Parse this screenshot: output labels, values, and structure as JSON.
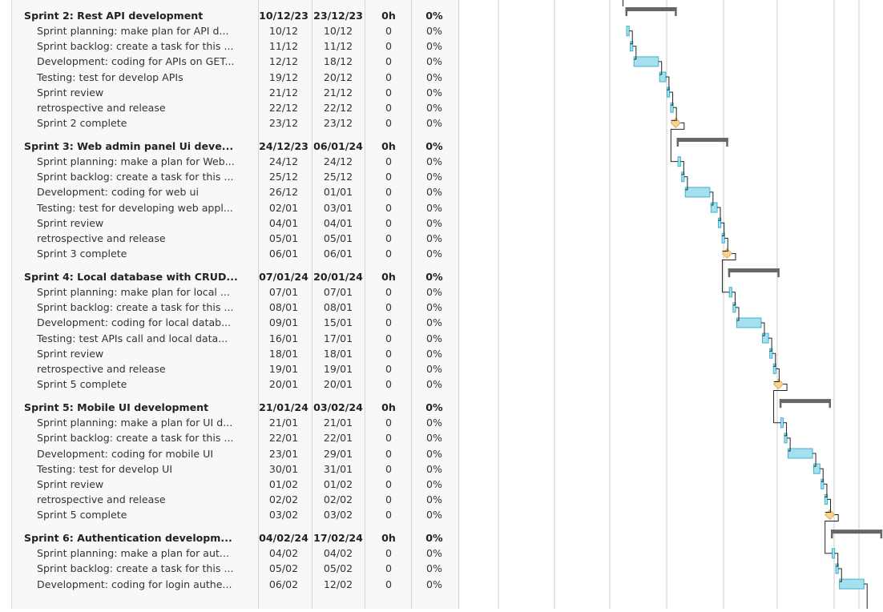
{
  "groups": [
    {
      "name": "Sprint 2: Rest API development",
      "start": "10/12/23",
      "end": "23/12/23",
      "hours": "0h",
      "pct": "0%",
      "tasks": [
        {
          "name": "Sprint planning: make plan for API d...",
          "start": "10/12",
          "end": "10/12",
          "hours": "0",
          "pct": "0%",
          "type": "task"
        },
        {
          "name": "Sprint backlog: create a task for this ...",
          "start": "11/12",
          "end": "11/12",
          "hours": "0",
          "pct": "0%",
          "type": "task"
        },
        {
          "name": "Development: coding for APIs on GET...",
          "start": "12/12",
          "end": "18/12",
          "hours": "0",
          "pct": "0%",
          "type": "task"
        },
        {
          "name": "Testing: test for develop APIs",
          "start": "19/12",
          "end": "20/12",
          "hours": "0",
          "pct": "0%",
          "type": "task"
        },
        {
          "name": "Sprint review",
          "start": "21/12",
          "end": "21/12",
          "hours": "0",
          "pct": "0%",
          "type": "task"
        },
        {
          "name": "retrospective and release",
          "start": "22/12",
          "end": "22/12",
          "hours": "0",
          "pct": "0%",
          "type": "task"
        },
        {
          "name": "Sprint 2 complete",
          "start": "23/12",
          "end": "23/12",
          "hours": "0",
          "pct": "0%",
          "type": "milestone"
        }
      ]
    },
    {
      "name": "Sprint 3: Web admin panel Ui deve...",
      "start": "24/12/23",
      "end": "06/01/24",
      "hours": "0h",
      "pct": "0%",
      "tasks": [
        {
          "name": "Sprint planning: make a plan for Web...",
          "start": "24/12",
          "end": "24/12",
          "hours": "0",
          "pct": "0%",
          "type": "task"
        },
        {
          "name": "Sprint backlog: create a task for this ...",
          "start": "25/12",
          "end": "25/12",
          "hours": "0",
          "pct": "0%",
          "type": "task"
        },
        {
          "name": "Development: coding for web ui",
          "start": "26/12",
          "end": "01/01",
          "hours": "0",
          "pct": "0%",
          "type": "task"
        },
        {
          "name": "Testing: test for developing web appl...",
          "start": "02/01",
          "end": "03/01",
          "hours": "0",
          "pct": "0%",
          "type": "task"
        },
        {
          "name": "Sprint review",
          "start": "04/01",
          "end": "04/01",
          "hours": "0",
          "pct": "0%",
          "type": "task"
        },
        {
          "name": "retrospective and release",
          "start": "05/01",
          "end": "05/01",
          "hours": "0",
          "pct": "0%",
          "type": "task"
        },
        {
          "name": "Sprint 3 complete",
          "start": "06/01",
          "end": "06/01",
          "hours": "0",
          "pct": "0%",
          "type": "milestone"
        }
      ]
    },
    {
      "name": "Sprint 4: Local database with CRUD...",
      "start": "07/01/24",
      "end": "20/01/24",
      "hours": "0h",
      "pct": "0%",
      "tasks": [
        {
          "name": "Sprint planning: make plan for local ...",
          "start": "07/01",
          "end": "07/01",
          "hours": "0",
          "pct": "0%",
          "type": "task"
        },
        {
          "name": "Sprint backlog: create a task for this ...",
          "start": "08/01",
          "end": "08/01",
          "hours": "0",
          "pct": "0%",
          "type": "task"
        },
        {
          "name": "Development: coding for local datab...",
          "start": "09/01",
          "end": "15/01",
          "hours": "0",
          "pct": "0%",
          "type": "task"
        },
        {
          "name": "Testing: test APIs call and local data...",
          "start": "16/01",
          "end": "17/01",
          "hours": "0",
          "pct": "0%",
          "type": "task"
        },
        {
          "name": "Sprint review",
          "start": "18/01",
          "end": "18/01",
          "hours": "0",
          "pct": "0%",
          "type": "task"
        },
        {
          "name": "retrospective and release",
          "start": "19/01",
          "end": "19/01",
          "hours": "0",
          "pct": "0%",
          "type": "task"
        },
        {
          "name": "Sprint 5 complete",
          "start": "20/01",
          "end": "20/01",
          "hours": "0",
          "pct": "0%",
          "type": "milestone"
        }
      ]
    },
    {
      "name": "Sprint 5: Mobile UI development",
      "start": "21/01/24",
      "end": "03/02/24",
      "hours": "0h",
      "pct": "0%",
      "tasks": [
        {
          "name": "Sprint planning: make a plan for UI d...",
          "start": "21/01",
          "end": "21/01",
          "hours": "0",
          "pct": "0%",
          "type": "task"
        },
        {
          "name": "Sprint backlog: create a task for this ...",
          "start": "22/01",
          "end": "22/01",
          "hours": "0",
          "pct": "0%",
          "type": "task"
        },
        {
          "name": "Development: coding for mobile UI",
          "start": "23/01",
          "end": "29/01",
          "hours": "0",
          "pct": "0%",
          "type": "task"
        },
        {
          "name": "Testing: test for develop UI",
          "start": "30/01",
          "end": "31/01",
          "hours": "0",
          "pct": "0%",
          "type": "task"
        },
        {
          "name": "Sprint review",
          "start": "01/02",
          "end": "01/02",
          "hours": "0",
          "pct": "0%",
          "type": "task"
        },
        {
          "name": "retrospective and release",
          "start": "02/02",
          "end": "02/02",
          "hours": "0",
          "pct": "0%",
          "type": "task"
        },
        {
          "name": "Sprint 5 complete",
          "start": "03/02",
          "end": "03/02",
          "hours": "0",
          "pct": "0%",
          "type": "milestone"
        }
      ]
    },
    {
      "name": "Sprint 6: Authentication developm...",
      "start": "04/02/24",
      "end": "17/02/24",
      "hours": "0h",
      "pct": "0%",
      "tasks": [
        {
          "name": "Sprint planning: make a plan for aut...",
          "start": "04/02",
          "end": "04/02",
          "hours": "0",
          "pct": "0%",
          "type": "task"
        },
        {
          "name": "Sprint backlog: create a task for this ...",
          "start": "05/02",
          "end": "05/02",
          "hours": "0",
          "pct": "0%",
          "type": "task"
        },
        {
          "name": "Development: coding for login authe...",
          "start": "06/02",
          "end": "12/02",
          "hours": "0",
          "pct": "0%",
          "type": "task"
        }
      ]
    }
  ],
  "colors": {
    "summary_bar": "#666666",
    "task_fill": "#a6e0ee",
    "task_border": "#3eb3ce",
    "milestone_fill": "#f8d493",
    "milestone_border": "#e1ab52",
    "link": "#222222",
    "gridline": "#cccccc"
  }
}
